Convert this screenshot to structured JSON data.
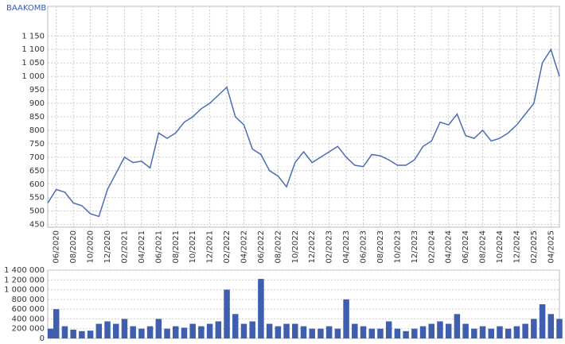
{
  "chart_data": [
    {
      "type": "line",
      "title": "BAAKOMB",
      "color": "#4a6db5",
      "grid": true,
      "x": [
        "05/2020",
        "06/2020",
        "07/2020",
        "08/2020",
        "09/2020",
        "10/2020",
        "11/2020",
        "12/2020",
        "01/2021",
        "02/2021",
        "03/2021",
        "04/2021",
        "05/2021",
        "06/2021",
        "07/2021",
        "08/2021",
        "09/2021",
        "10/2021",
        "11/2021",
        "12/2021",
        "01/2022",
        "02/2022",
        "03/2022",
        "04/2022",
        "05/2022",
        "06/2022",
        "07/2022",
        "08/2022",
        "09/2022",
        "10/2022",
        "11/2022",
        "12/2022",
        "01/2023",
        "02/2023",
        "03/2023",
        "04/2023",
        "05/2023",
        "06/2023",
        "07/2023",
        "08/2023",
        "09/2023",
        "10/2023",
        "11/2023",
        "12/2023",
        "01/2024",
        "02/2024",
        "03/2024",
        "04/2024",
        "05/2024",
        "06/2024",
        "07/2024",
        "08/2024",
        "09/2024",
        "10/2024",
        "11/2024",
        "12/2024",
        "01/2025",
        "02/2025",
        "03/2025",
        "04/2025",
        "05/2025"
      ],
      "values": [
        530,
        580,
        570,
        530,
        520,
        490,
        480,
        580,
        640,
        700,
        680,
        685,
        660,
        790,
        770,
        790,
        830,
        850,
        880,
        900,
        930,
        960,
        850,
        820,
        730,
        710,
        650,
        630,
        590,
        680,
        720,
        680,
        700,
        720,
        740,
        700,
        670,
        665,
        710,
        705,
        690,
        670,
        670,
        690,
        740,
        760,
        830,
        820,
        860,
        780,
        770,
        800,
        760,
        770,
        790,
        820,
        860,
        900,
        1050,
        1100,
        1000
      ],
      "xlim": [
        "05/2020",
        "05/2025"
      ],
      "xticks": [
        "06/2020",
        "08/2020",
        "10/2020",
        "12/2020",
        "02/2021",
        "04/2021",
        "06/2021",
        "08/2021",
        "10/2021",
        "12/2021",
        "02/2022",
        "04/2022",
        "06/2022",
        "08/2022",
        "10/2022",
        "12/2022",
        "02/2023",
        "04/2023",
        "06/2023",
        "08/2023",
        "10/2023",
        "12/2023",
        "02/2024",
        "04/2024",
        "06/2024",
        "08/2024",
        "10/2024",
        "12/2024",
        "02/2025",
        "04/2025"
      ],
      "ylim": [
        440,
        1260
      ],
      "yticks": [
        450,
        500,
        550,
        600,
        650,
        700,
        750,
        800,
        850,
        900,
        950,
        {
          "value": 1000,
          "label": "1 000"
        },
        {
          "value": 1050,
          "label": "1 050"
        },
        {
          "value": 1100,
          "label": "1 100"
        },
        {
          "value": 1150,
          "label": "1 150"
        }
      ]
    },
    {
      "type": "bar",
      "color": "#3f5fae",
      "grid": true,
      "x": [
        "05/2020",
        "06/2020",
        "07/2020",
        "08/2020",
        "09/2020",
        "10/2020",
        "11/2020",
        "12/2020",
        "01/2021",
        "02/2021",
        "03/2021",
        "04/2021",
        "05/2021",
        "06/2021",
        "07/2021",
        "08/2021",
        "09/2021",
        "10/2021",
        "11/2021",
        "12/2021",
        "01/2022",
        "02/2022",
        "03/2022",
        "04/2022",
        "05/2022",
        "06/2022",
        "07/2022",
        "08/2022",
        "09/2022",
        "10/2022",
        "11/2022",
        "12/2022",
        "01/2023",
        "02/2023",
        "03/2023",
        "04/2023",
        "05/2023",
        "06/2023",
        "07/2023",
        "08/2023",
        "09/2023",
        "10/2023",
        "11/2023",
        "12/2023",
        "01/2024",
        "02/2024",
        "03/2024",
        "04/2024",
        "05/2024",
        "06/2024",
        "07/2024",
        "08/2024",
        "09/2024",
        "10/2024",
        "11/2024",
        "12/2024",
        "01/2025",
        "02/2025",
        "03/2025",
        "04/2025",
        "05/2025"
      ],
      "values": [
        200000,
        600000,
        250000,
        180000,
        150000,
        160000,
        300000,
        350000,
        300000,
        400000,
        250000,
        200000,
        250000,
        400000,
        200000,
        250000,
        220000,
        300000,
        250000,
        300000,
        350000,
        1000000,
        500000,
        300000,
        350000,
        1220000,
        300000,
        250000,
        300000,
        300000,
        250000,
        200000,
        200000,
        250000,
        200000,
        800000,
        300000,
        250000,
        200000,
        200000,
        350000,
        200000,
        150000,
        200000,
        250000,
        300000,
        350000,
        300000,
        500000,
        300000,
        200000,
        250000,
        200000,
        250000,
        200000,
        250000,
        300000,
        400000,
        700000,
        500000,
        400000
      ],
      "xlim": [
        "05/2020",
        "05/2025"
      ],
      "ylim": [
        0,
        1400000
      ],
      "yticks": [
        0,
        {
          "value": 200000,
          "label": "200 000"
        },
        {
          "value": 400000,
          "label": "400 000"
        },
        {
          "value": 600000,
          "label": "600 000"
        },
        {
          "value": 800000,
          "label": "800 000"
        },
        {
          "value": 1000000,
          "label": "1 000 000"
        },
        {
          "value": 1200000,
          "label": "1 200 000"
        },
        {
          "value": 1400000,
          "label": "1 400 000"
        }
      ]
    }
  ]
}
